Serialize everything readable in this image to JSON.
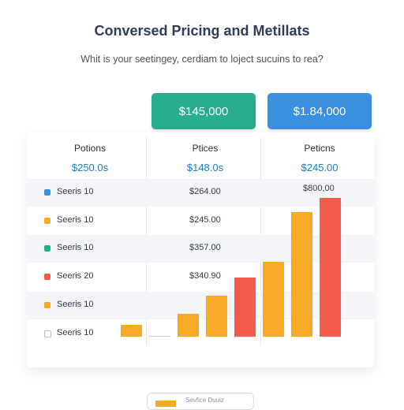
{
  "title": "Conversed Pricing and Metillats",
  "subtitle": "Whit is your seetingey, cerdiam to loject sucuins to rea?",
  "buttons": [
    {
      "label": "$145,000",
      "color": "#2aad8f"
    },
    {
      "label": "$1.84,000",
      "color": "#3b8fe0"
    }
  ],
  "columns": [
    {
      "header": "Potions",
      "value": "$250.0s"
    },
    {
      "header": "Ptices",
      "value": "$148.0s"
    },
    {
      "header": "Peticns",
      "value": "$245.00"
    }
  ],
  "rows": [
    {
      "label": "Seeris 10",
      "value": "$264.00",
      "color": "#3b8fe0"
    },
    {
      "label": "Seeris 10",
      "value": "$245.00",
      "color": "#f7a928"
    },
    {
      "label": "Seeris 10",
      "value": "$357.00",
      "color": "#2aad8f"
    },
    {
      "label": "Seeris 20",
      "value": "$340.90",
      "color": "#f45b4b"
    },
    {
      "label": "Seeris 10",
      "value": "",
      "color": "#f7a928"
    },
    {
      "label": "Seeris 10",
      "value": "",
      "color": "outline"
    }
  ],
  "extra_value": "$800,00",
  "chart_data": {
    "type": "bar",
    "series": [
      {
        "values": [
          14,
          0,
          27,
          49,
          71,
          90,
          149,
          166
        ],
        "colors": [
          "#f7a928",
          "#c9cdd4",
          "#f7a928",
          "#f7a928",
          "#f45b4b",
          "#f7a928",
          "#f7a928",
          "#f45b4b"
        ]
      }
    ],
    "ylim": [
      0,
      170
    ]
  },
  "legend": {
    "text": "Sevfice     Duuiz",
    "color": "#f7a928"
  }
}
